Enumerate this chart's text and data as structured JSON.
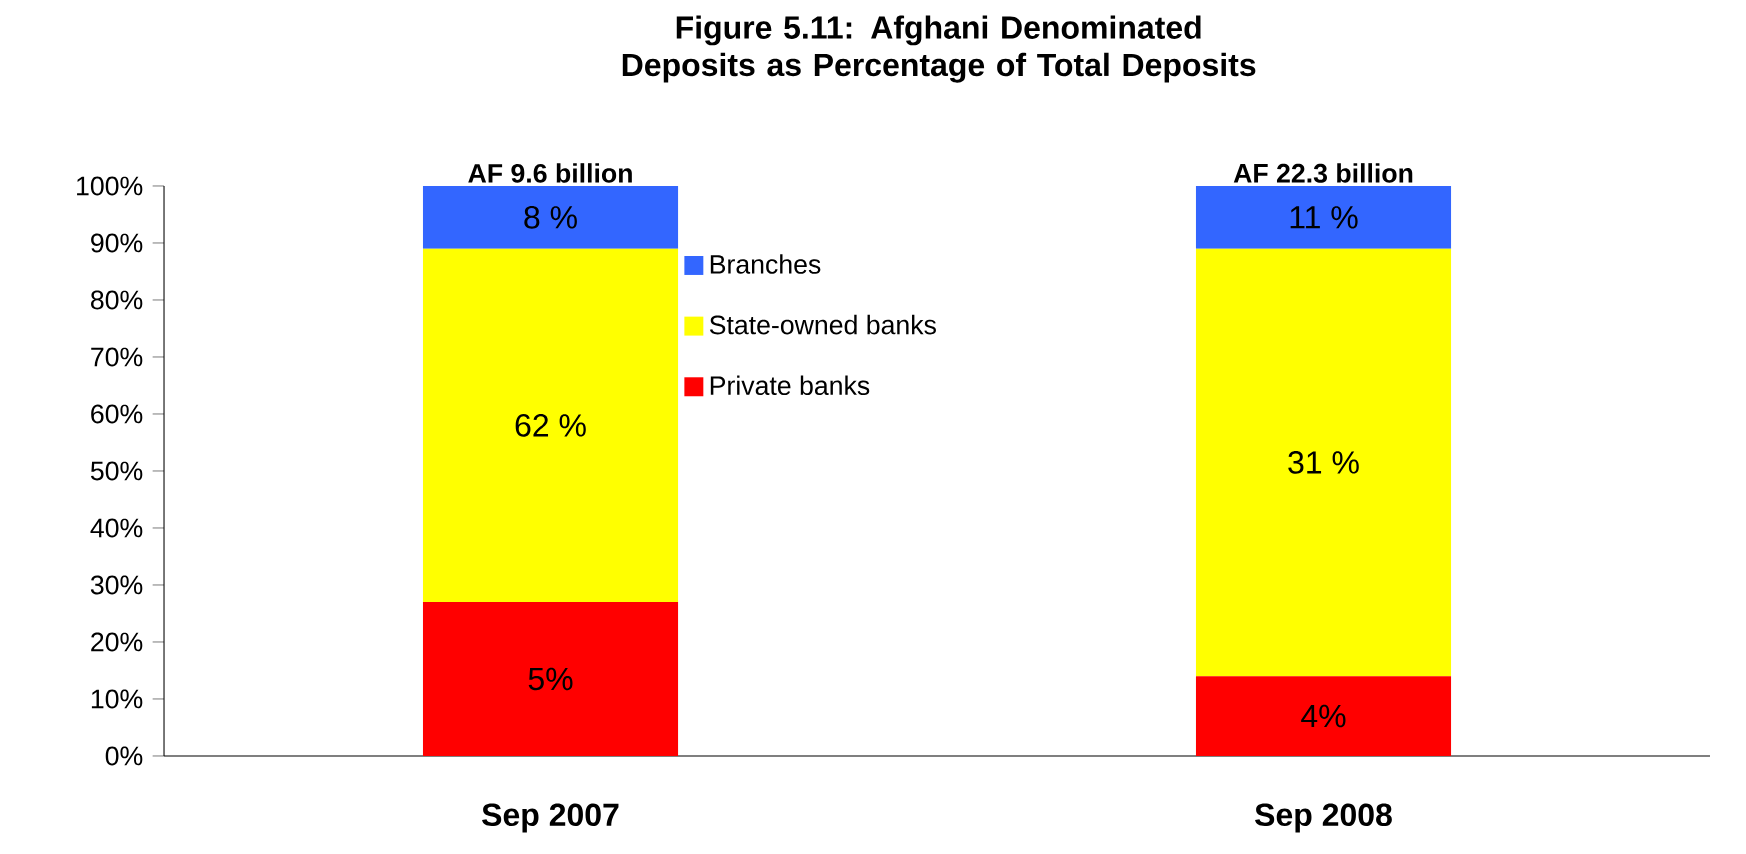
{
  "chart_data": {
    "type": "bar",
    "stacked": true,
    "title": "Figure 5.11: Afghani Denominated Deposits as Percentage of Total Deposits",
    "categories": [
      "Sep 2007",
      "Sep 2008"
    ],
    "series": [
      {
        "name": "Private banks",
        "color": "#ff0000",
        "values": [
          27,
          14
        ]
      },
      {
        "name": "State-owned banks",
        "color": "#ffff00",
        "values": [
          62,
          75
        ]
      },
      {
        "name": "Branches",
        "color": "#3366ff",
        "values": [
          11,
          11
        ]
      }
    ],
    "annotations": [
      "5%",
      "62  %",
      "8 %",
      "4%",
      "31 %",
      "11 %"
    ],
    "totals": [
      "AF 9.6 billion",
      "AF 22.3 billion"
    ],
    "ylim": [
      0,
      100
    ],
    "yticks": [
      {
        "value": 0,
        "label": "0%"
      },
      {
        "value": 10,
        "label": "10%"
      },
      {
        "value": 20,
        "label": "20%"
      },
      {
        "value": 30,
        "label": "30%"
      },
      {
        "value": 40,
        "label": "40%"
      },
      {
        "value": 50,
        "label": "50%"
      },
      {
        "value": 60,
        "label": "60%"
      },
      {
        "value": 70,
        "label": "70%"
      },
      {
        "value": 80,
        "label": "80%"
      },
      {
        "value": 90,
        "label": "90%"
      },
      {
        "value": 100,
        "label": "100%"
      }
    ],
    "grid": false,
    "legend": "top"
  }
}
